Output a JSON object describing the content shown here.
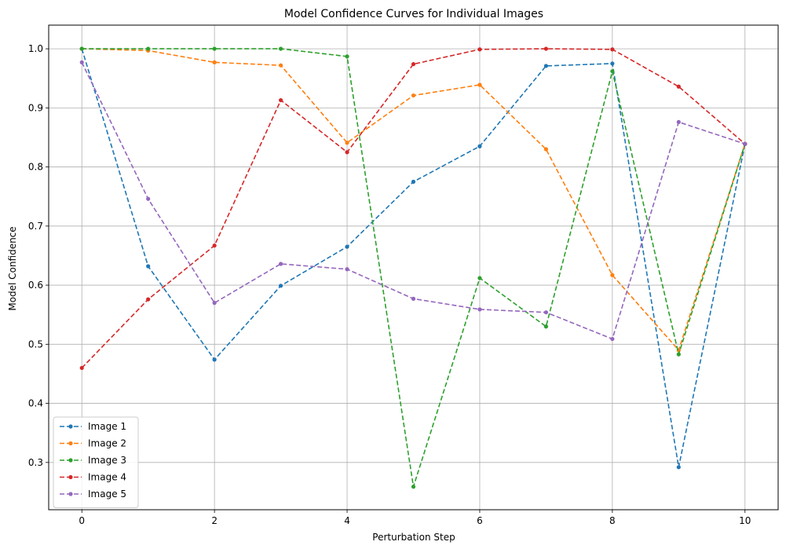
{
  "chart_data": {
    "type": "line",
    "title": "Model Confidence Curves for Individual Images",
    "xlabel": "Perturbation Step",
    "ylabel": "Model Confidence",
    "xlim": [
      -0.5,
      10.5
    ],
    "ylim": [
      0.22,
      1.04
    ],
    "xticks": [
      0,
      2,
      4,
      6,
      8,
      10
    ],
    "yticks": [
      0.3,
      0.4,
      0.5,
      0.6,
      0.7,
      0.8,
      0.9,
      1.0
    ],
    "grid": true,
    "legend_position": "lower-left",
    "x": [
      0,
      1,
      2,
      3,
      4,
      5,
      6,
      7,
      8,
      9,
      10
    ],
    "series": [
      {
        "name": "Image 1",
        "color": "#1f77b4",
        "values": [
          1.0,
          0.632,
          0.474,
          0.599,
          0.665,
          0.775,
          0.835,
          0.971,
          0.975,
          0.292,
          0.839
        ]
      },
      {
        "name": "Image 2",
        "color": "#ff7f0e",
        "values": [
          1.0,
          0.997,
          0.977,
          0.972,
          0.841,
          0.921,
          0.939,
          0.83,
          0.617,
          0.49,
          0.839
        ]
      },
      {
        "name": "Image 3",
        "color": "#2ca02c",
        "values": [
          1.0,
          1.0,
          1.0,
          1.0,
          0.987,
          0.259,
          0.612,
          0.53,
          0.962,
          0.483,
          0.839
        ]
      },
      {
        "name": "Image 4",
        "color": "#d62728",
        "values": [
          0.46,
          0.576,
          0.667,
          0.913,
          0.825,
          0.974,
          0.999,
          1.0,
          0.999,
          0.936,
          0.839
        ]
      },
      {
        "name": "Image 5",
        "color": "#9467bd",
        "values": [
          0.977,
          0.746,
          0.57,
          0.636,
          0.627,
          0.577,
          0.559,
          0.554,
          0.509,
          0.876,
          0.839
        ]
      }
    ]
  }
}
